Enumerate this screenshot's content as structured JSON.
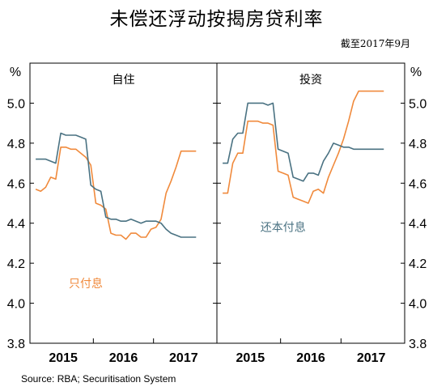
{
  "title": "未偿还浮动按揭房贷利率",
  "as_of": "截至2017年9月",
  "source": "Source:     RBA; Securitisation System",
  "colors": {
    "interest_only": "#f08a3c",
    "principal_and_interest": "#4a7282",
    "axis": "#000000"
  },
  "chart_data": {
    "type": "line",
    "y_unit": "%",
    "ylim": [
      3.8,
      5.2
    ],
    "yticks": [
      "3.8",
      "4.0",
      "4.2",
      "4.4",
      "4.6",
      "4.8",
      "5.0"
    ],
    "x_ticks": [
      "2015",
      "2016",
      "2017"
    ],
    "panels": [
      {
        "title": "自住",
        "series": [
          {
            "name": "只付息",
            "color": "#f08a3c",
            "x": [
              "2015-01",
              "2015-02",
              "2015-03",
              "2015-04",
              "2015-05",
              "2015-06",
              "2015-07",
              "2015-08",
              "2015-09",
              "2015-10",
              "2015-11",
              "2015-12",
              "2016-01",
              "2016-02",
              "2016-03",
              "2016-04",
              "2016-05",
              "2016-06",
              "2016-07",
              "2016-08",
              "2016-09",
              "2016-10",
              "2016-11",
              "2016-12",
              "2017-01",
              "2017-02",
              "2017-03",
              "2017-04",
              "2017-05",
              "2017-06",
              "2017-07",
              "2017-08",
              "2017-09"
            ],
            "values": [
              4.57,
              4.56,
              4.58,
              4.63,
              4.62,
              4.78,
              4.78,
              4.77,
              4.77,
              4.75,
              4.73,
              4.69,
              4.5,
              4.49,
              4.47,
              4.35,
              4.34,
              4.34,
              4.32,
              4.35,
              4.35,
              4.33,
              4.33,
              4.37,
              4.38,
              4.42,
              4.55,
              4.61,
              4.68,
              4.76,
              4.76,
              4.76,
              4.76
            ]
          },
          {
            "name": "还本付息",
            "color": "#4a7282",
            "x": [
              "2015-01",
              "2015-02",
              "2015-03",
              "2015-04",
              "2015-05",
              "2015-06",
              "2015-07",
              "2015-08",
              "2015-09",
              "2015-10",
              "2015-11",
              "2015-12",
              "2016-01",
              "2016-02",
              "2016-03",
              "2016-04",
              "2016-05",
              "2016-06",
              "2016-07",
              "2016-08",
              "2016-09",
              "2016-10",
              "2016-11",
              "2016-12",
              "2017-01",
              "2017-02",
              "2017-03",
              "2017-04",
              "2017-05",
              "2017-06",
              "2017-07",
              "2017-08",
              "2017-09"
            ],
            "values": [
              4.72,
              4.72,
              4.72,
              4.71,
              4.7,
              4.85,
              4.84,
              4.84,
              4.84,
              4.83,
              4.82,
              4.59,
              4.57,
              4.56,
              4.43,
              4.42,
              4.42,
              4.41,
              4.41,
              4.42,
              4.41,
              4.4,
              4.41,
              4.41,
              4.41,
              4.4,
              4.37,
              4.35,
              4.34,
              4.33,
              4.33,
              4.33,
              4.33
            ]
          }
        ]
      },
      {
        "title": "投资",
        "series": [
          {
            "name": "只付息",
            "color": "#f08a3c",
            "x": [
              "2015-01",
              "2015-02",
              "2015-03",
              "2015-04",
              "2015-05",
              "2015-06",
              "2015-07",
              "2015-08",
              "2015-09",
              "2015-10",
              "2015-11",
              "2015-12",
              "2016-01",
              "2016-02",
              "2016-03",
              "2016-04",
              "2016-05",
              "2016-06",
              "2016-07",
              "2016-08",
              "2016-09",
              "2016-10",
              "2016-11",
              "2016-12",
              "2017-01",
              "2017-02",
              "2017-03",
              "2017-04",
              "2017-05",
              "2017-06",
              "2017-07",
              "2017-08",
              "2017-09"
            ],
            "values": [
              4.55,
              4.55,
              4.7,
              4.75,
              4.75,
              4.91,
              4.91,
              4.91,
              4.9,
              4.9,
              4.89,
              4.66,
              4.65,
              4.64,
              4.53,
              4.52,
              4.51,
              4.5,
              4.56,
              4.57,
              4.55,
              4.63,
              4.69,
              4.75,
              4.82,
              4.91,
              5.01,
              5.06,
              5.06,
              5.06,
              5.06,
              5.06,
              5.06
            ]
          },
          {
            "name": "还本付息",
            "color": "#4a7282",
            "x": [
              "2015-01",
              "2015-02",
              "2015-03",
              "2015-04",
              "2015-05",
              "2015-06",
              "2015-07",
              "2015-08",
              "2015-09",
              "2015-10",
              "2015-11",
              "2015-12",
              "2016-01",
              "2016-02",
              "2016-03",
              "2016-04",
              "2016-05",
              "2016-06",
              "2016-07",
              "2016-08",
              "2016-09",
              "2016-10",
              "2016-11",
              "2016-12",
              "2017-01",
              "2017-02",
              "2017-03",
              "2017-04",
              "2017-05",
              "2017-06",
              "2017-07",
              "2017-08",
              "2017-09"
            ],
            "values": [
              4.7,
              4.7,
              4.82,
              4.85,
              4.85,
              5.0,
              5.0,
              5.0,
              5.0,
              4.99,
              5.0,
              4.77,
              4.76,
              4.75,
              4.63,
              4.62,
              4.61,
              4.65,
              4.65,
              4.64,
              4.71,
              4.75,
              4.8,
              4.79,
              4.78,
              4.78,
              4.77,
              4.77,
              4.77,
              4.77,
              4.77,
              4.77,
              4.77
            ]
          }
        ]
      }
    ],
    "annotations": [
      {
        "panel": 0,
        "text": "只付息",
        "color": "#f08a3c",
        "x": "2015-11",
        "y": 4.08
      },
      {
        "panel": 1,
        "text": "还本付息",
        "color": "#4a7282",
        "x": "2016-01",
        "y": 4.36
      }
    ]
  }
}
